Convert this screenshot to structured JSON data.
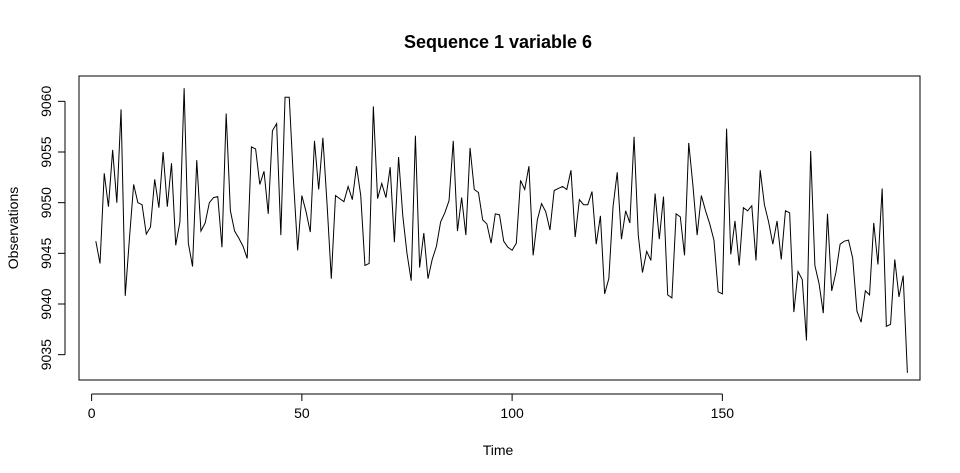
{
  "chart_data": {
    "type": "line",
    "title": "Sequence  1  variable  6",
    "xlabel": "Time",
    "ylabel": "Observations",
    "xlim": [
      -3,
      197
    ],
    "ylim": [
      9032.5,
      9062.5
    ],
    "x_ticks": [
      0,
      50,
      100,
      150
    ],
    "y_ticks": [
      9035,
      9040,
      9045,
      9050,
      9055,
      9060
    ],
    "grid": false,
    "x_start": 1,
    "series": [
      {
        "values": [
          9046.2,
          9044.0,
          9052.9,
          9049.6,
          9055.2,
          9050.0,
          9059.2,
          9040.8,
          9046.5,
          9051.8,
          9050.0,
          9049.8,
          9046.9,
          9047.6,
          9052.3,
          9049.5,
          9055.0,
          9049.6,
          9053.9,
          9045.8,
          9048.1,
          9061.3,
          9046.0,
          9043.7,
          9054.2,
          9047.2,
          9048.0,
          9050.0,
          9050.5,
          9050.6,
          9045.6,
          9058.8,
          9049.2,
          9047.2,
          9046.5,
          9045.7,
          9044.5,
          9055.5,
          9055.3,
          9051.8,
          9053.1,
          9048.9,
          9057.1,
          9057.8,
          9046.8,
          9060.4,
          9060.4,
          9052.2,
          9045.3,
          9050.7,
          9049.1,
          9047.1,
          9056.1,
          9051.3,
          9056.4,
          9049.8,
          9042.5,
          9050.7,
          9050.4,
          9050.1,
          9051.6,
          9050.3,
          9053.6,
          9050.7,
          9043.8,
          9044.0,
          9059.5,
          9050.4,
          9051.9,
          9050.5,
          9053.5,
          9046.1,
          9054.5,
          9048.7,
          9045.0,
          9042.3,
          9056.6,
          9043.6,
          9047.0,
          9042.5,
          9044.4,
          9045.7,
          9048.1,
          9049.0,
          9050.2,
          9056.1,
          9047.2,
          9050.5,
          9046.8,
          9055.4,
          9051.3,
          9051.0,
          9048.3,
          9047.9,
          9046.0,
          9048.9,
          9048.8,
          9046.2,
          9045.6,
          9045.3,
          9046.0,
          9052.2,
          9051.3,
          9053.6,
          9044.8,
          9048.3,
          9049.9,
          9049.1,
          9047.3,
          9051.2,
          9051.4,
          9051.6,
          9051.3,
          9053.2,
          9046.6,
          9050.3,
          9049.8,
          9049.8,
          9051.1,
          9045.9,
          9048.7,
          9041.0,
          9042.5,
          9049.6,
          9053.0,
          9046.4,
          9049.2,
          9048.0,
          9056.5,
          9046.8,
          9043.1,
          9045.2,
          9044.3,
          9050.9,
          9046.4,
          9050.6,
          9040.9,
          9040.6,
          9048.9,
          9048.6,
          9044.8,
          9055.9,
          9051.7,
          9046.8,
          9050.7,
          9049.2,
          9047.9,
          9046.3,
          9041.2,
          9041.0,
          9057.3,
          9044.9,
          9048.2,
          9043.8,
          9049.5,
          9049.2,
          9049.7,
          9044.3,
          9053.2,
          9049.8,
          9048.1,
          9045.9,
          9048.2,
          9044.4,
          9049.2,
          9049.0,
          9039.2,
          9043.2,
          9042.4,
          9036.4,
          9055.1,
          9043.8,
          9042.0,
          9039.1,
          9048.9,
          9041.3,
          9043.1,
          9045.9,
          9046.2,
          9046.3,
          9044.5,
          9039.3,
          9038.2,
          9041.3,
          9040.9,
          9048.0,
          9043.9,
          9051.4,
          9037.8,
          9038.0,
          9044.4,
          9040.7,
          9042.8,
          9033.2
        ]
      }
    ]
  }
}
